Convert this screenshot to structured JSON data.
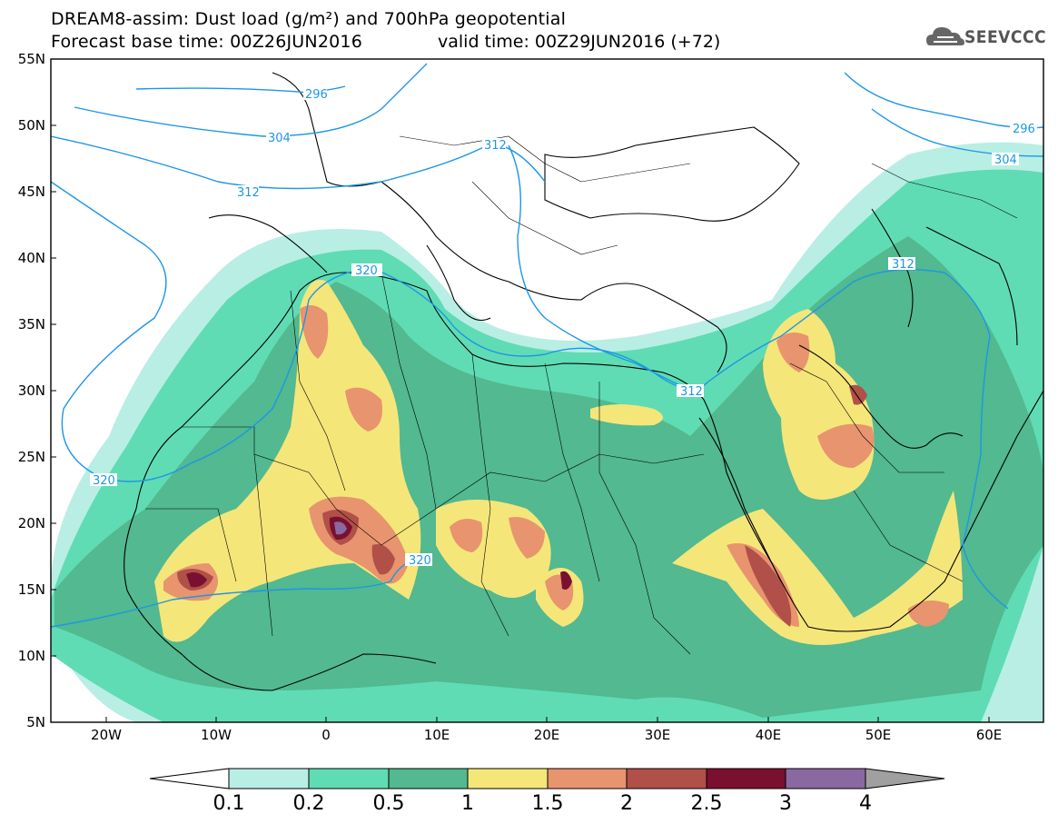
{
  "header": {
    "title_line1": "DREAM8-assim: Dust load (g/m²) and 700hPa geopotential",
    "title_line2_left": "Forecast base time: 00Z26JUN2016",
    "title_line2_right": "valid time: 00Z29JUN2016 (+72)"
  },
  "logo": {
    "text": "SEEVCCC",
    "icon": "cloud-logo-icon"
  },
  "map": {
    "lon_range": [
      -25,
      65
    ],
    "lat_range": [
      5,
      55
    ],
    "x_ticks": [
      "20W",
      "10W",
      "0",
      "10E",
      "20E",
      "30E",
      "40E",
      "50E",
      "60E"
    ],
    "y_ticks": [
      "55N",
      "50N",
      "45N",
      "40N",
      "35N",
      "30N",
      "25N",
      "20N",
      "15N",
      "10N",
      "5N"
    ],
    "contour_labels": [
      "296",
      "304",
      "312",
      "320",
      "312",
      "320",
      "320",
      "296",
      "304",
      "312",
      "312"
    ],
    "contour_color": "#1e96e6"
  },
  "colorbar": {
    "labels": [
      "0.1",
      "0.2",
      "0.5",
      "1",
      "1.5",
      "2",
      "2.5",
      "3",
      "4"
    ],
    "colors": [
      "#b9eee5",
      "#5fdcb4",
      "#52b990",
      "#f5e67a",
      "#e8946e",
      "#b05048",
      "#7a1030",
      "#8a68a0",
      "#a0a0a0"
    ]
  }
}
